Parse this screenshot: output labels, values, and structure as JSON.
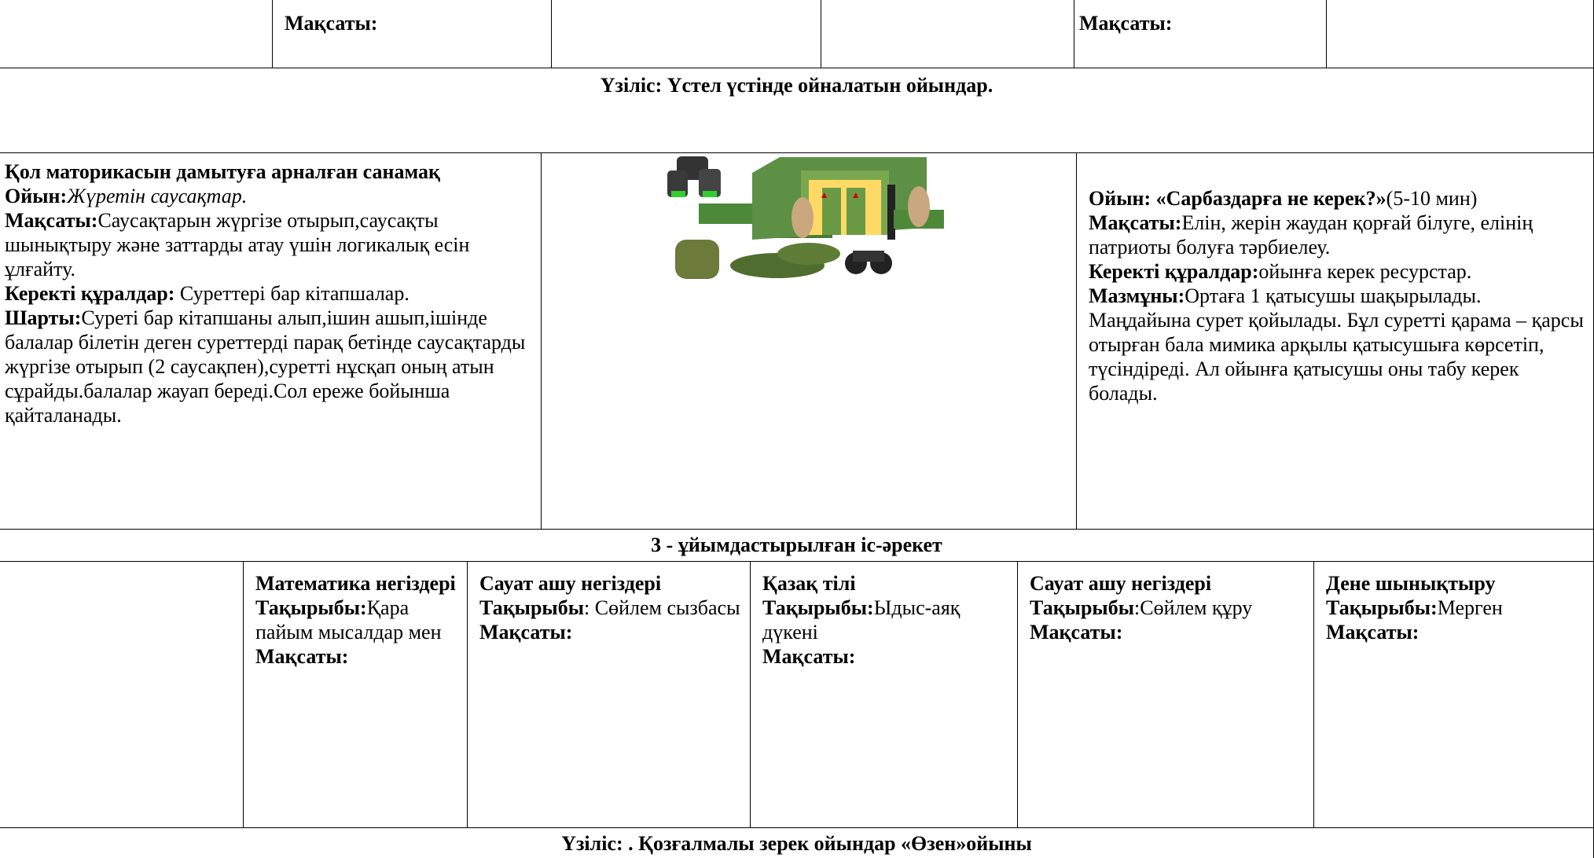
{
  "row1": {
    "goal_a": "Мақсаты:",
    "goal_b": "Мақсаты:"
  },
  "break1": "Үзіліс: Үстел үстінде ойналатын ойындар.",
  "left_game": {
    "heading": "Қол маторикасын дамытуға арналған санамақ",
    "game_label": "Ойын:",
    "game": "Жүретін саусақтар.",
    "goal_label": "Мақсаты:",
    "goal": "Саусақтарын жүргізе отырып,саусақты шынықтыру және заттарды атау үшін логикалық есін ұлғайту.",
    "tools_label": "Керекті құралдар:",
    "tools": "Суреттері бар кітапшалар.",
    "rules_label": "Шарты:",
    "rules": "Суреті бар кітапшаны алып,ішин ашып,ішінде балалар білетін деген суреттерді парақ бетінде саусақтарды жүргізе отырып (2 саусақпен),суретті нұсқап оның атын сұрайды.балалар жауап береді.Сол ереже бойынша қайталанады."
  },
  "right_game": {
    "title_label": "Ойын: «Сарбаздарға не керек?»",
    "title_rest": "(5-10 мин)",
    "goal_label": "Мақсаты:",
    "goal": "Елін, жерін жаудан қорғай білуге, елінің патриоты болуға тәрбиелеу.",
    "tools_label": "Керекті құралдар:",
    "tools": "ойынға керек ресурстар.",
    "content_label": "Мазмұны:",
    "content": "Ортаға 1 қатысушы шақырылады. Маңдайына сурет қойылады. Бұл суретті қарама – қарсы отырған бала мимика арқылы қатысушыға көрсетіп, түсіндіреді. Ал ойынға қатысушы оны табу керек болады."
  },
  "activity_header": "3 - ұйымдастырылған іс-әрекет",
  "lessons": [
    {
      "subject": "Математика негіздері",
      "topic_label": "Тақырыбы:",
      "topic": "Қара пайым мысалдар мен",
      "goal_label": "Мақсаты:"
    },
    {
      "subject": "Сауат ашу негіздері",
      "topic_label": "Тақырыбы",
      "topic": ": Сөйлем сызбасы",
      "goal_label": "Мақсаты:"
    },
    {
      "subject": "Қазақ тілі",
      "topic_label": "Тақырыбы:",
      "topic": "Ыдыс-аяқ дүкені",
      "goal_label": "Мақсаты:"
    },
    {
      "subject": "Сауат ашу негіздері",
      "topic_label": "Тақырыбы",
      "topic": ":Сөйлем құру",
      "goal_label": "Мақсаты:"
    },
    {
      "subject": "Дене шынықтыру",
      "topic_label": "Тақырыбы:",
      "topic": "Мерген",
      "goal_label": "Мақсаты:"
    }
  ],
  "break2": "Үзіліс: . Қозғалмалы зерек ойындар «Өзен»ойыны"
}
